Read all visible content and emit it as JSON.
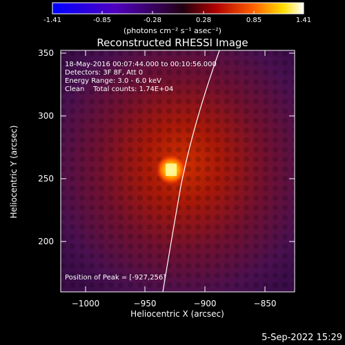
{
  "figure": {
    "title": "Reconstructed RHESSI Image",
    "xlabel": "Heliocentric X (arcsec)",
    "ylabel": "Heliocentric Y (arcsec)",
    "timestamp": "5-Sep-2022 15:29"
  },
  "colorbar": {
    "ticks": [
      "-1.41",
      "-0.85",
      "-0.28",
      "0.28",
      "0.85",
      "1.41"
    ],
    "units": "(photons cm⁻² s⁻¹ asec⁻²)"
  },
  "annotations": {
    "time_range": "18-May-2016 00:07:44.000 to 00:10:56.000",
    "detectors": "Detectors: 3F 8F, Att 0",
    "energy": "Energy Range: 3.0 - 6.0 keV",
    "clean": "Clean    Total counts: 1.74E+04",
    "peak": "Position of Peak = [-927,256]"
  },
  "axes": {
    "x_ticks": [
      "−1000",
      "−950",
      "−900",
      "−850"
    ],
    "y_ticks": [
      "350",
      "300",
      "250",
      "200"
    ]
  },
  "image": {
    "peak_x": -927,
    "peak_y": 256,
    "colormap": "rainbow-black-purple-red-yellow-white"
  }
}
